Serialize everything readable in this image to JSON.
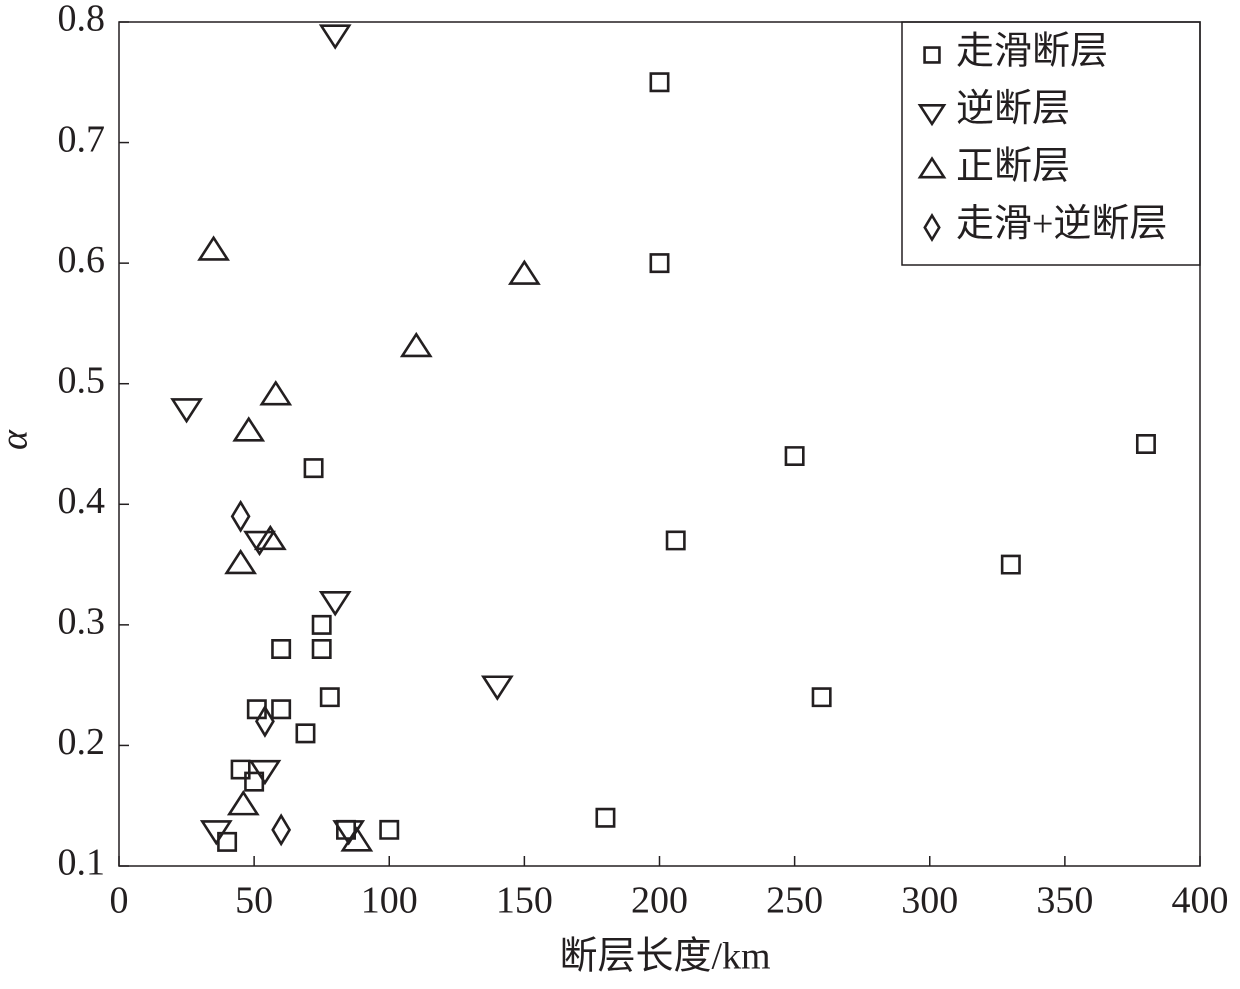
{
  "chart_data": {
    "type": "scatter",
    "x_label": "断层长度/km",
    "y_label": "α",
    "xlim": [
      0,
      400
    ],
    "ylim": [
      0.1,
      0.8
    ],
    "xticks": [
      0,
      50,
      100,
      150,
      200,
      250,
      300,
      350,
      400
    ],
    "yticks": [
      0.1,
      0.2,
      0.3,
      0.4,
      0.5,
      0.6,
      0.7,
      0.8
    ],
    "legend": "top-right",
    "series": [
      {
        "name": "走滑断层",
        "marker": "square",
        "color": "#231f20",
        "x": [
          200,
          200,
          250,
          380,
          206,
          330,
          260,
          180,
          72,
          75,
          75,
          60,
          78,
          51,
          60,
          69,
          45,
          50,
          40,
          84,
          100
        ],
        "values": [
          0.75,
          0.6,
          0.44,
          0.45,
          0.37,
          0.35,
          0.24,
          0.14,
          0.43,
          0.3,
          0.28,
          0.28,
          0.24,
          0.23,
          0.23,
          0.21,
          0.18,
          0.17,
          0.12,
          0.13,
          0.13
        ]
      },
      {
        "name": "逆断层",
        "marker": "triangle-down",
        "color": "#231f20",
        "x": [
          80,
          25,
          52,
          80,
          140,
          54,
          36,
          85
        ],
        "values": [
          0.79,
          0.48,
          0.37,
          0.32,
          0.25,
          0.18,
          0.13,
          0.13
        ]
      },
      {
        "name": "正断层",
        "marker": "triangle-up",
        "color": "#231f20",
        "x": [
          35,
          150,
          110,
          58,
          48,
          56,
          45,
          46,
          88
        ],
        "values": [
          0.61,
          0.59,
          0.53,
          0.49,
          0.46,
          0.37,
          0.35,
          0.15,
          0.12
        ]
      },
      {
        "name": "走滑+逆断层",
        "marker": "diamond",
        "color": "#231f20",
        "x": [
          45,
          54,
          60
        ],
        "values": [
          0.39,
          0.22,
          0.13
        ]
      }
    ]
  }
}
